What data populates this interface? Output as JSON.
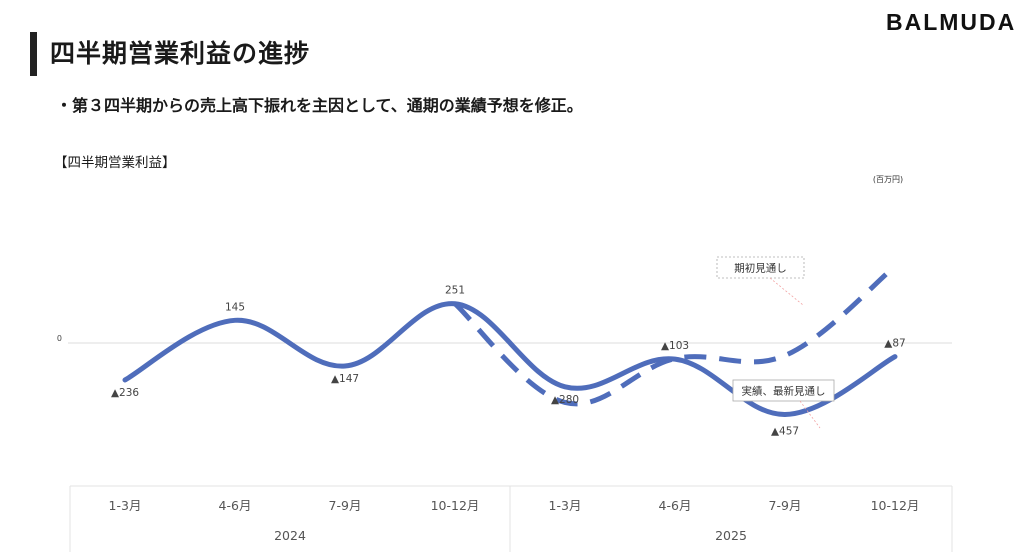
{
  "header": {
    "title": "四半期営業利益の進捗",
    "logo": "BALMUDA"
  },
  "bullet": "・第３四半期からの売上高下振れを主因として、通期の業績予想を修正。",
  "chart_caption": "【四半期営業利益】",
  "chart_data": {
    "type": "line",
    "unit_label": "(百万円)",
    "zero_label": "0",
    "categories": [
      "1-3月",
      "4-6月",
      "7-9月",
      "10-12月",
      "1-3月",
      "4-6月",
      "7-9月",
      "10-12月"
    ],
    "years": [
      "2024",
      "2025"
    ],
    "series": [
      {
        "name": "実績、最新見通し",
        "style": "solid",
        "color": "#4f6dbb",
        "values": [
          -236,
          145,
          -147,
          251,
          -280,
          -103,
          -457,
          -87
        ],
        "labels": [
          "▲236",
          "145",
          "▲147",
          "251",
          "▲280",
          "▲103",
          "▲457",
          "▲87"
        ]
      },
      {
        "name": "期初見通し",
        "style": "dashed",
        "color": "#4f6dbb",
        "values": [
          null,
          null,
          null,
          251,
          -380,
          -100,
          -80,
          490
        ]
      }
    ],
    "grid": false,
    "colors": {
      "line": "#4f6dbb",
      "zero_line": "#dddddd",
      "table_border": "#e3e3e3",
      "callout_border": "#aaaaaa",
      "leader": "#f2a3a3"
    }
  }
}
